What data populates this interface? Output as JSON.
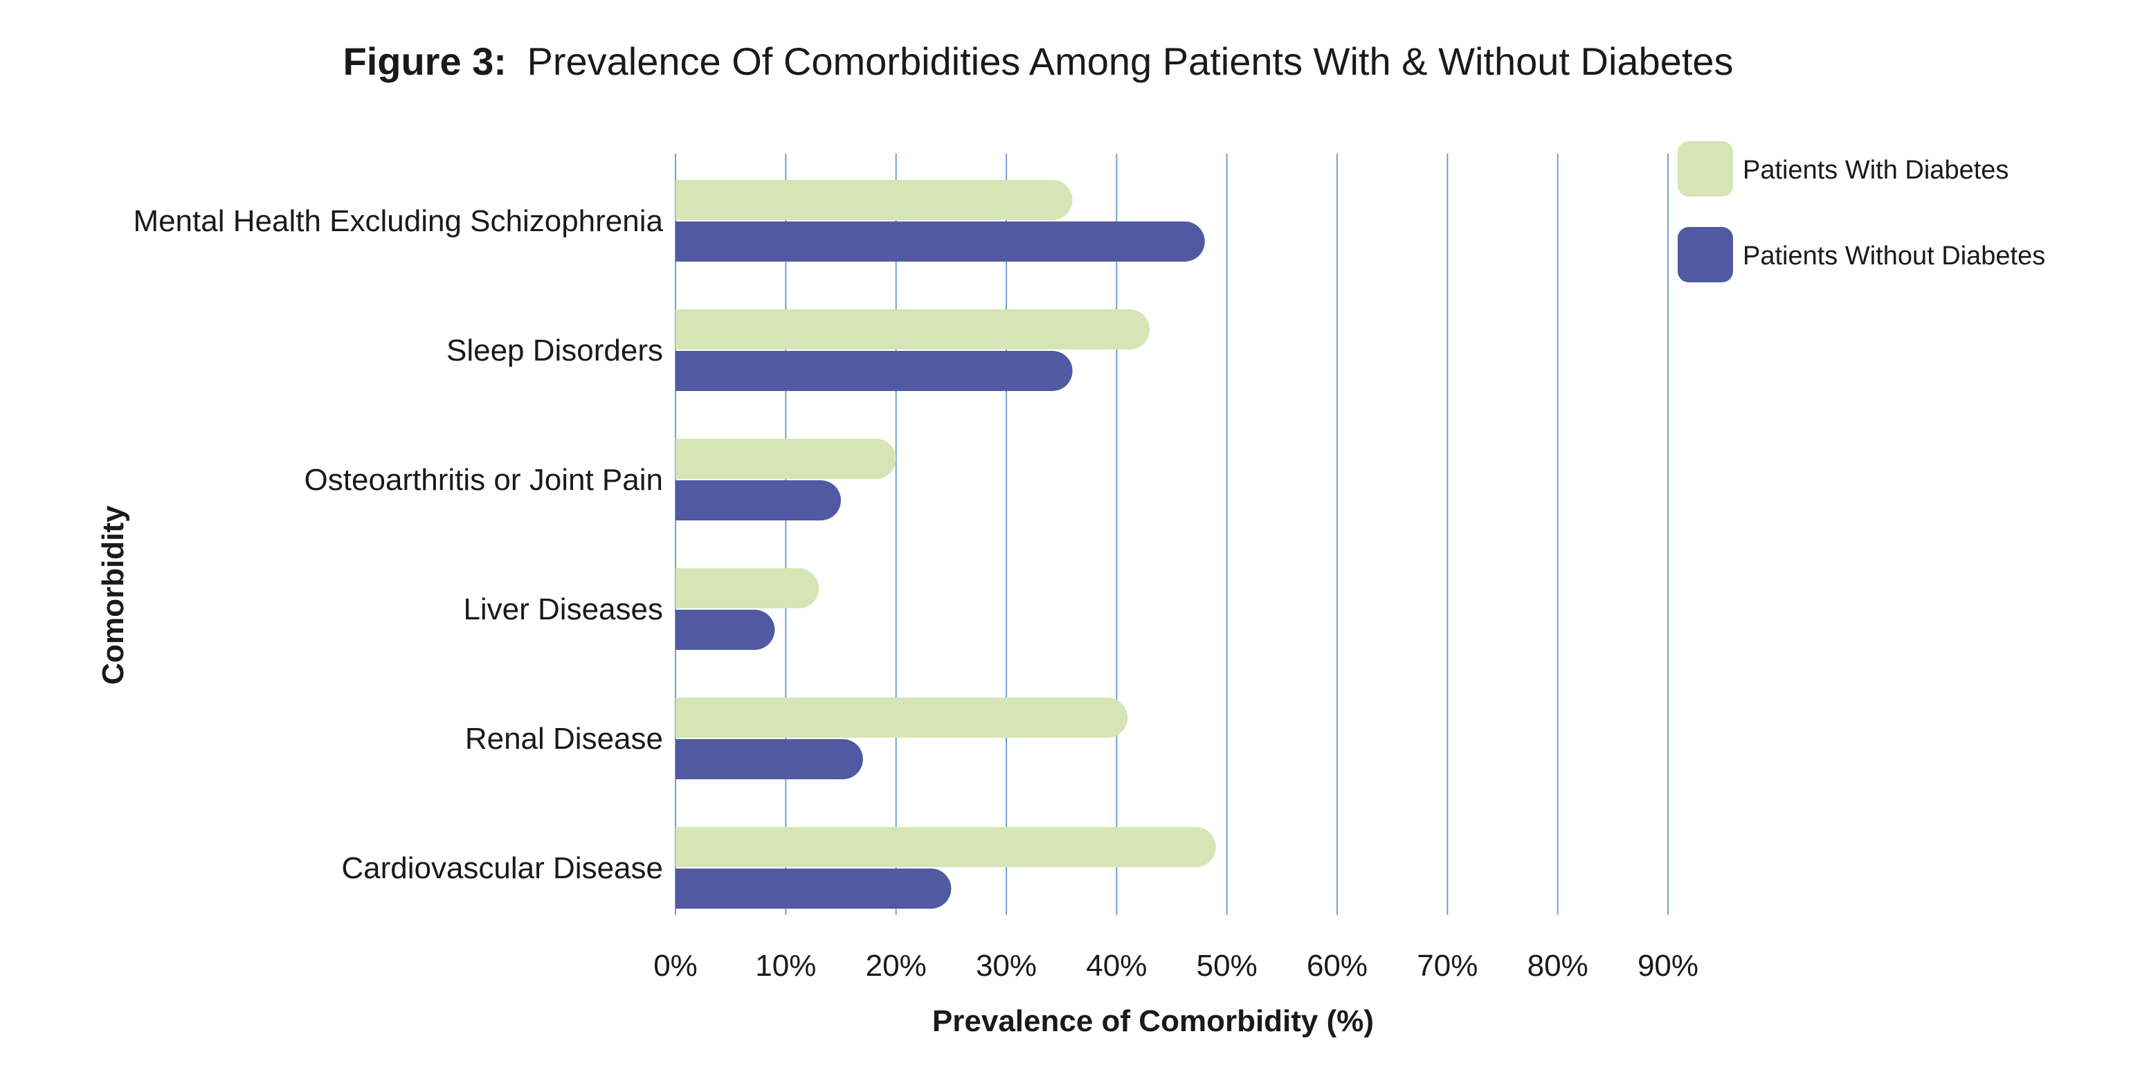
{
  "chart_data": {
    "type": "bar",
    "orientation": "horizontal",
    "title_prefix": "Figure 3:",
    "title": "Prevalence Of Comorbidities Among Patients With & Without Diabetes",
    "xlabel": "Prevalence of Comorbidity (%)",
    "ylabel": "Comorbidity",
    "categories": [
      "Mental Health Excluding Schizophrenia",
      "Sleep Disorders",
      "Osteoarthritis or Joint Pain",
      "Liver Diseases",
      "Renal Disease",
      "Cardiovascular Disease"
    ],
    "series": [
      {
        "name": "Patients With Diabetes",
        "color": "#d5e5b5",
        "values": [
          36,
          43,
          20,
          13,
          41,
          49
        ]
      },
      {
        "name": "Patients Without Diabetes",
        "color": "#5059a2",
        "values": [
          48,
          36,
          15,
          9,
          17,
          25
        ]
      }
    ],
    "xlim": [
      0,
      90
    ],
    "xticks": [
      0,
      10,
      20,
      30,
      40,
      50,
      60,
      70,
      80,
      90
    ],
    "xtick_labels": [
      "0%",
      "10%",
      "20%",
      "30%",
      "40%",
      "50%",
      "60%",
      "70%",
      "80%",
      "90%"
    ],
    "grid": "vertical",
    "grid_color": "#6fa0d8",
    "legend_position": "top-right"
  }
}
